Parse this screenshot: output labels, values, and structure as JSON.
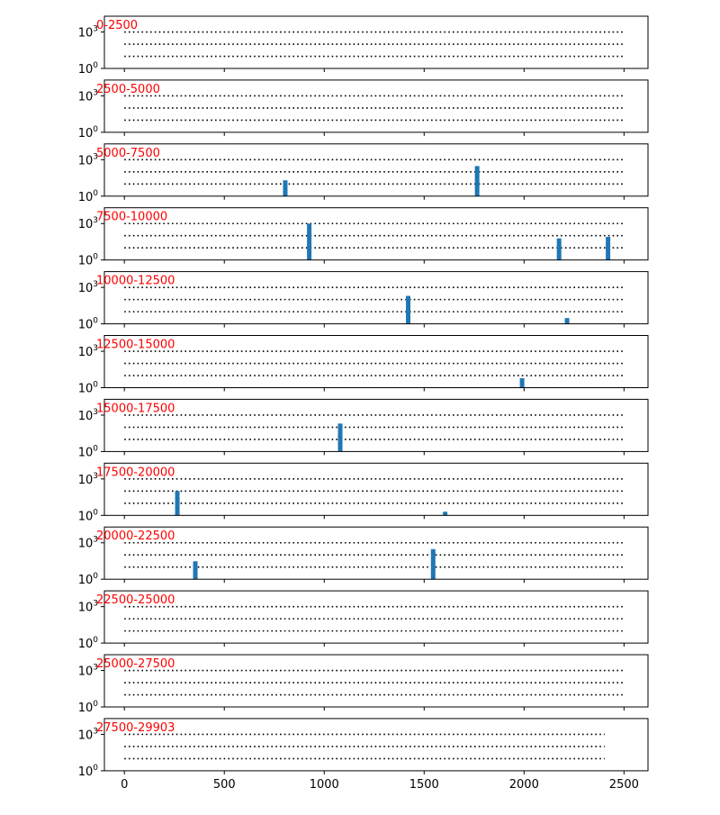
{
  "chart_data": {
    "type": "bar",
    "layout": "12 stacked panels sharing x-axis",
    "xlim": [
      -100,
      2620
    ],
    "xticks": [
      0,
      500,
      1000,
      1500,
      2000,
      2500
    ],
    "xtick_labels": [
      "0",
      "500",
      "1000",
      "1500",
      "2000",
      "2500"
    ],
    "y_scale": "log",
    "ylim": [
      1,
      20000
    ],
    "yticks": [
      1,
      1000
    ],
    "ytick_labels": [
      {
        "base": "10",
        "exp": "0"
      },
      {
        "base": "10",
        "exp": "3"
      }
    ],
    "reference_lines": [
      10,
      100,
      1000
    ],
    "bar_color": "#1f77b4",
    "label_color": "#ff0000",
    "panels": [
      {
        "label": "0-2500",
        "line_end": 2500,
        "bars": []
      },
      {
        "label": "2500-5000",
        "line_end": 2500,
        "bars": []
      },
      {
        "label": "5000-7500",
        "line_end": 2500,
        "bars": [
          {
            "x": 805,
            "value": 20
          },
          {
            "x": 1765,
            "value": 300
          }
        ]
      },
      {
        "label": "7500-10000",
        "line_end": 2500,
        "bars": [
          {
            "x": 925,
            "value": 1000
          },
          {
            "x": 2175,
            "value": 60
          },
          {
            "x": 2420,
            "value": 80
          }
        ]
      },
      {
        "label": "10000-12500",
        "line_end": 2500,
        "bars": [
          {
            "x": 1420,
            "value": 200
          },
          {
            "x": 2215,
            "value": 3
          }
        ]
      },
      {
        "label": "12500-15000",
        "line_end": 2500,
        "bars": [
          {
            "x": 1990,
            "value": 6
          }
        ]
      },
      {
        "label": "15000-17500",
        "line_end": 2500,
        "bars": [
          {
            "x": 1080,
            "value": 200
          }
        ]
      },
      {
        "label": "17500-20000",
        "line_end": 2500,
        "bars": [
          {
            "x": 265,
            "value": 100
          },
          {
            "x": 1605,
            "value": 2
          }
        ]
      },
      {
        "label": "20000-22500",
        "line_end": 2500,
        "bars": [
          {
            "x": 355,
            "value": 30
          },
          {
            "x": 1545,
            "value": 300
          }
        ]
      },
      {
        "label": "22500-25000",
        "line_end": 2500,
        "bars": []
      },
      {
        "label": "25000-27500",
        "line_end": 2500,
        "bars": []
      },
      {
        "label": "27500-29903",
        "line_end": 2403,
        "bars": []
      }
    ]
  }
}
